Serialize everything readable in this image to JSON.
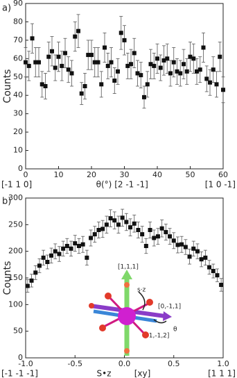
{
  "chart_data": [
    {
      "type": "scatter",
      "panel_label": "a)",
      "xlabel": "θ(°)",
      "ylabel": "Counts",
      "orientation_labels": [
        "[-1 1 0]",
        "[2 -1 -1]",
        "[1 0 -1]"
      ],
      "xlim": [
        0,
        60
      ],
      "xticks": [
        0,
        10,
        20,
        30,
        40,
        50,
        60
      ],
      "ylim": [
        0,
        90
      ],
      "yticks": [
        0,
        10,
        20,
        30,
        40,
        50,
        60,
        70,
        80,
        90
      ],
      "color": "#111111",
      "x": [
        0,
        1,
        2,
        3,
        4,
        5,
        6,
        7,
        8,
        9,
        10,
        11,
        12,
        13,
        14,
        15,
        16,
        17,
        18,
        19,
        20,
        21,
        22,
        23,
        24,
        25,
        26,
        27,
        28,
        29,
        30,
        31,
        32,
        33,
        34,
        35,
        36,
        37,
        38,
        39,
        40,
        41,
        42,
        43,
        44,
        45,
        46,
        47,
        48,
        49,
        50,
        51,
        52,
        53,
        54,
        55,
        56,
        57,
        58,
        59,
        60
      ],
      "values": [
        58,
        56,
        71,
        58,
        58,
        46,
        45,
        61,
        64,
        55,
        61,
        56,
        63,
        54,
        52,
        72,
        75,
        41,
        45,
        62,
        62,
        58,
        58,
        46,
        66,
        56,
        58,
        48,
        53,
        74,
        70,
        56,
        57,
        63,
        52,
        51,
        39,
        46,
        57,
        56,
        60,
        55,
        59,
        60,
        52,
        58,
        53,
        52,
        57,
        53,
        61,
        60,
        53,
        54,
        66,
        49,
        47,
        54,
        46,
        61,
        43
      ],
      "errors": [
        8,
        8,
        8,
        8,
        8,
        7,
        7,
        8,
        8,
        7,
        8,
        8,
        8,
        7,
        7,
        8,
        9,
        6,
        7,
        8,
        8,
        8,
        8,
        7,
        8,
        7,
        8,
        7,
        7,
        9,
        8,
        7,
        8,
        8,
        7,
        7,
        6,
        7,
        8,
        7,
        8,
        7,
        8,
        8,
        7,
        8,
        7,
        7,
        8,
        7,
        8,
        8,
        7,
        7,
        8,
        7,
        7,
        7,
        7,
        8,
        7
      ]
    },
    {
      "type": "scatter",
      "panel_label": "b)",
      "xlabel": "S•z",
      "ylabel": "Counts",
      "orientation_labels": [
        "[-1 -1 -1]",
        "[xy]",
        "[1 1 1]"
      ],
      "annotations": [
        "[1,1,1]",
        "s·z",
        "[0,-1,1]",
        "θ",
        "[-1,-1,2]"
      ],
      "xlim": [
        -1,
        1
      ],
      "xticks": [
        {
          "value": -1,
          "label": "-1.0"
        },
        {
          "value": -0.5,
          "label": "-0.5"
        },
        {
          "value": 0,
          "label": "0.0"
        },
        {
          "value": 0.5,
          "label": "0.5"
        },
        {
          "value": 1,
          "label": "1.0"
        }
      ],
      "ylim": [
        0,
        300
      ],
      "yticks": [
        0,
        50,
        100,
        150,
        200,
        250,
        300
      ],
      "color": "#111111",
      "x": [
        -0.98,
        -0.94,
        -0.9,
        -0.86,
        -0.82,
        -0.78,
        -0.74,
        -0.7,
        -0.66,
        -0.62,
        -0.58,
        -0.54,
        -0.5,
        -0.46,
        -0.42,
        -0.38,
        -0.34,
        -0.3,
        -0.26,
        -0.22,
        -0.18,
        -0.14,
        -0.1,
        -0.06,
        -0.02,
        0.02,
        0.06,
        0.1,
        0.14,
        0.18,
        0.22,
        0.26,
        0.3,
        0.34,
        0.38,
        0.42,
        0.46,
        0.5,
        0.54,
        0.58,
        0.62,
        0.66,
        0.7,
        0.74,
        0.78,
        0.82,
        0.86,
        0.9,
        0.94,
        0.98
      ],
      "values": [
        135,
        145,
        160,
        173,
        188,
        180,
        192,
        200,
        195,
        205,
        210,
        205,
        215,
        210,
        213,
        188,
        225,
        232,
        240,
        242,
        250,
        262,
        258,
        250,
        263,
        255,
        245,
        252,
        240,
        232,
        210,
        240,
        225,
        228,
        243,
        236,
        228,
        220,
        212,
        213,
        208,
        190,
        205,
        200,
        185,
        188,
        170,
        163,
        155,
        137
      ],
      "errors": [
        12,
        12,
        13,
        13,
        14,
        13,
        14,
        14,
        14,
        14,
        14,
        14,
        15,
        14,
        15,
        14,
        15,
        15,
        15,
        16,
        16,
        16,
        16,
        16,
        16,
        16,
        16,
        16,
        15,
        15,
        14,
        15,
        15,
        15,
        16,
        15,
        15,
        15,
        15,
        15,
        14,
        14,
        14,
        14,
        14,
        14,
        13,
        13,
        12,
        12
      ]
    }
  ]
}
